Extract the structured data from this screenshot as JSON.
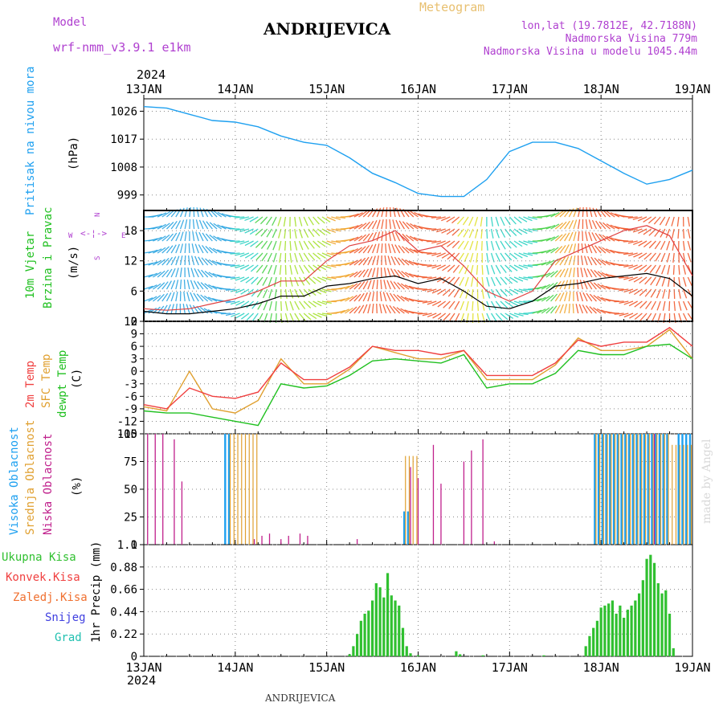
{
  "header": {
    "model_label": "Model",
    "model_value": "wrf-nmm_v3.9.1 e1km",
    "station": "ANDRIJEVICA",
    "meteogram": "Meteogram",
    "lonlat": "lon,lat (19.7812E, 42.7188N)",
    "elev": "Nadmorska Visina 779m",
    "elev_model": "Nadmorska Visina u modelu 1045.44m",
    "year_top": "2024",
    "year_bottom": "2024",
    "footer_station": "ANDRIJEVICA",
    "watermark": "made by Angel"
  },
  "colors": {
    "pressure": "#1ea0f0",
    "temp2m": "#f04040",
    "sfc": "#e0a030",
    "dewpt": "#20c020",
    "high": "#1ea0f0",
    "mid": "#e0a030",
    "low": "#c0208c",
    "total": "#30c030",
    "grid": "#888888"
  },
  "panel_labels": {
    "pressure": {
      "title": "Pritisak na nivou mora",
      "unit": "(hPa)"
    },
    "wind": {
      "title1": "10m Vjetar",
      "title2": "Brzina i Pravac",
      "unit": "(m/s)",
      "compass_n": "N",
      "compass_s": "S",
      "compass_w": "W",
      "compass_e": "E"
    },
    "temp": {
      "t1": "2m Temp",
      "t2": "SFC Temp",
      "t3": "dewpt Temp",
      "unit": "(C)"
    },
    "cloud": {
      "c1": "Visoka Oblacnost",
      "c2": "Srednja Oblacnost",
      "c3": "Niska Oblacnost",
      "unit": "(%)"
    },
    "precip": {
      "title": "1hr Precip (mm)",
      "leg": [
        "Ukupna Kisa",
        "Konvek.Kisa",
        "Zaledj.Kisa",
        "Snijeg",
        "Grad"
      ]
    }
  },
  "chart_data": [
    {
      "type": "line",
      "title": "Pritisak na nivou mora",
      "ylabel": "(hPa)",
      "x_ticks": [
        "13JAN",
        "14JAN",
        "15JAN",
        "16JAN",
        "17JAN",
        "18JAN",
        "19JAN"
      ],
      "y_ticks": [
        999,
        1008,
        1017,
        1026
      ],
      "ylim": [
        994,
        1030
      ],
      "x_hours": [
        0,
        6,
        12,
        18,
        24,
        30,
        36,
        42,
        48,
        54,
        60,
        66,
        72,
        78,
        84,
        90,
        96,
        102,
        108,
        114,
        120,
        126,
        132,
        138,
        144
      ],
      "series": [
        {
          "name": "pressure",
          "values": [
            1027.5,
            1027,
            1025,
            1023,
            1022.5,
            1021,
            1018,
            1016,
            1015,
            1011,
            1006,
            1003,
            999.5,
            998.5,
            998.5,
            1004,
            1013,
            1016,
            1016,
            1014,
            1010,
            1006,
            1002.5,
            1004,
            1007
          ]
        }
      ]
    },
    {
      "type": "line",
      "title": "10m Vjetar Brzina i Pravac",
      "ylabel": "(m/s)",
      "y_ticks": [
        0,
        6,
        12,
        18
      ],
      "ylim": [
        0,
        22
      ],
      "x_hours": [
        0,
        6,
        12,
        18,
        24,
        30,
        36,
        42,
        48,
        54,
        60,
        66,
        72,
        78,
        84,
        90,
        96,
        102,
        108,
        114,
        120,
        126,
        132,
        138,
        144
      ],
      "series": [
        {
          "name": "speed",
          "values": [
            2,
            1.5,
            1.5,
            2,
            2.5,
            3.5,
            5,
            5,
            7,
            7.5,
            8.5,
            9,
            7.5,
            8.5,
            6,
            3,
            2.5,
            4,
            7,
            7.5,
            8.5,
            9,
            9.5,
            8.5,
            5
          ]
        },
        {
          "name": "gust",
          "values": [
            2.5,
            2.2,
            2.5,
            3.5,
            4.5,
            6,
            8,
            8,
            12,
            15,
            16,
            18,
            14,
            15,
            11,
            6,
            4,
            6,
            12,
            14,
            16,
            18,
            19,
            17,
            9
          ]
        }
      ]
    },
    {
      "type": "line",
      "title": "2m Temp / SFC Temp / dewpt Temp",
      "ylabel": "(C)",
      "y_ticks": [
        -15,
        -12,
        -9,
        -6,
        -3,
        0,
        3,
        6,
        9,
        12
      ],
      "ylim": [
        -15,
        12
      ],
      "x_hours": [
        0,
        6,
        12,
        18,
        24,
        30,
        36,
        42,
        48,
        54,
        60,
        66,
        72,
        78,
        84,
        90,
        96,
        102,
        108,
        114,
        120,
        126,
        132,
        138,
        144
      ],
      "series": [
        {
          "name": "2m Temp",
          "values": [
            -8,
            -9,
            -4,
            -6,
            -6.5,
            -5,
            2,
            -2,
            -2,
            1,
            6,
            5,
            5,
            4,
            5,
            -1,
            -1,
            -1,
            2,
            7.5,
            6,
            7,
            7,
            10.5,
            6
          ]
        },
        {
          "name": "SFC Temp",
          "values": [
            -8.5,
            -9.5,
            0,
            -9,
            -10,
            -7,
            3,
            -3,
            -3,
            0.5,
            6,
            4.5,
            3,
            3,
            5,
            -2,
            -2,
            -2,
            1.5,
            8,
            5,
            5,
            6,
            10,
            3
          ]
        },
        {
          "name": "dewpt Temp",
          "values": [
            -9.5,
            -10,
            -10,
            -11,
            -12,
            -13,
            -3,
            -4,
            -3.5,
            -1,
            2.5,
            3,
            2.5,
            2,
            4,
            -4,
            -3,
            -3,
            -0.5,
            5,
            4,
            4,
            6,
            6.5,
            3
          ]
        }
      ]
    },
    {
      "type": "bar",
      "title": "Visoka / Srednja / Niska Oblacnost",
      "ylabel": "(%)",
      "y_ticks": [
        0,
        25,
        50,
        75,
        100
      ],
      "ylim": [
        0,
        100
      ],
      "series": [
        {
          "name": "Visoka Oblacnost",
          "intervals": [
            [
              21,
              23,
              100
            ],
            [
              68,
              70,
              30
            ],
            [
              118,
              138,
              100
            ],
            [
              140,
              144,
              100
            ]
          ]
        },
        {
          "name": "Srednja Oblacnost",
          "intervals": [
            [
              22,
              30,
              100
            ],
            [
              68,
              72,
              80
            ],
            [
              118,
              138,
              100
            ],
            [
              138,
              144,
              90
            ]
          ]
        },
        {
          "name": "Niska Oblacnost",
          "spikes": [
            [
              1,
              100
            ],
            [
              3,
              100
            ],
            [
              5,
              100
            ],
            [
              8,
              95
            ],
            [
              10,
              57
            ],
            [
              29,
              5
            ],
            [
              31,
              8
            ],
            [
              33,
              10
            ],
            [
              36,
              5
            ],
            [
              38,
              8
            ],
            [
              41,
              10
            ],
            [
              43,
              8
            ],
            [
              56,
              5
            ],
            [
              70,
              70
            ],
            [
              72,
              60
            ],
            [
              76,
              90
            ],
            [
              78,
              55
            ],
            [
              84,
              75
            ],
            [
              86,
              85
            ],
            [
              89,
              95
            ],
            [
              92,
              3
            ],
            [
              134,
              100
            ]
          ]
        }
      ]
    },
    {
      "type": "bar",
      "title": "1hr Precip",
      "ylabel": "(mm)",
      "y_ticks": [
        0,
        0.22,
        0.44,
        0.66,
        0.88,
        1.1
      ],
      "ylim": [
        0,
        1.1
      ],
      "series": [
        {
          "name": "Ukupna Kisa",
          "x_hours": [
            54,
            55,
            56,
            57,
            58,
            59,
            60,
            61,
            62,
            63,
            64,
            65,
            66,
            67,
            68,
            69,
            70,
            71,
            72,
            73,
            74,
            75,
            76,
            77,
            78,
            79,
            80,
            81,
            82,
            83,
            84,
            85,
            86,
            87,
            88,
            89,
            90,
            91,
            92,
            93,
            94,
            95,
            96,
            97,
            98,
            99,
            100,
            101,
            102,
            103,
            104,
            105,
            106,
            107,
            108,
            109,
            110,
            111,
            112,
            113,
            114,
            115,
            116,
            117,
            118,
            119,
            120,
            121,
            122,
            123,
            124,
            125,
            126,
            127,
            128,
            129,
            130,
            131,
            132,
            133,
            134,
            135,
            136,
            137,
            138,
            139,
            140,
            141,
            142,
            143,
            144
          ],
          "values": [
            0.02,
            0.1,
            0.22,
            0.35,
            0.42,
            0.45,
            0.55,
            0.72,
            0.68,
            0.58,
            0.82,
            0.6,
            0.55,
            0.5,
            0.28,
            0.1,
            0.03,
            0,
            0.01,
            0,
            0,
            0,
            0,
            0,
            0,
            0,
            0,
            0,
            0.05,
            0.02,
            0,
            0,
            0,
            0,
            0,
            0.01,
            0,
            0,
            0,
            0,
            0,
            0,
            0,
            0,
            0,
            0,
            0,
            0,
            0,
            0,
            0,
            0.01,
            0,
            0,
            0,
            0,
            0,
            0,
            0,
            0,
            0,
            0,
            0.1,
            0.2,
            0.28,
            0.35,
            0.48,
            0.5,
            0.52,
            0.55,
            0.42,
            0.5,
            0.38,
            0.46,
            0.5,
            0.55,
            0.62,
            0.75,
            0.96,
            1.0,
            0.92,
            0.72,
            0.62,
            0.65,
            0.42,
            0.08,
            0,
            0,
            0,
            0,
            0
          ]
        }
      ]
    }
  ]
}
